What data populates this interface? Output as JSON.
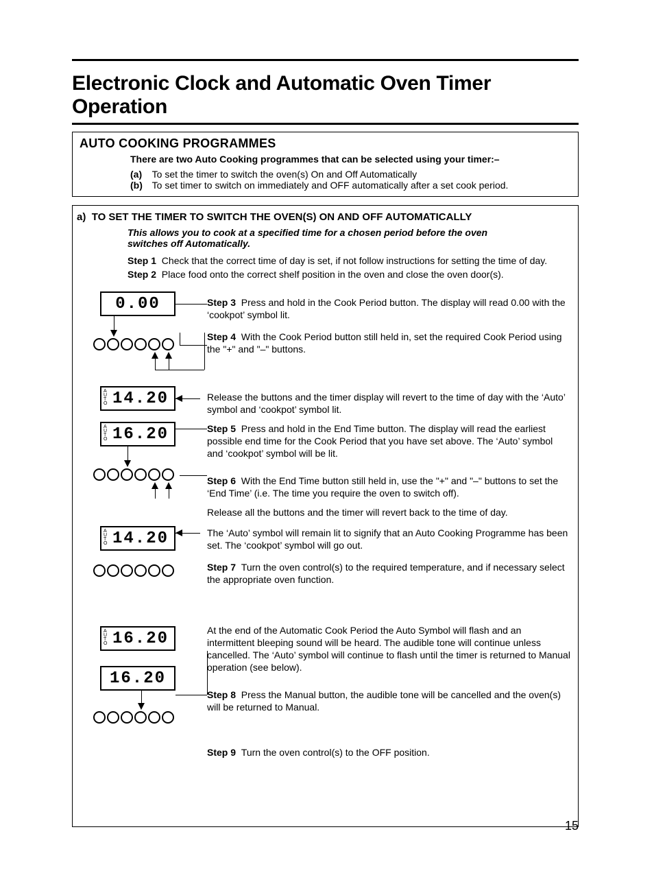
{
  "title": "Electronic Clock and Automatic Oven Timer Operation",
  "page_number": "15",
  "intro": {
    "heading": "AUTO COOKING PROGRAMMES",
    "lead": "There are two Auto Cooking programmes that can be selected using your timer:–",
    "a_label": "(a)",
    "a_text": "To set the timer to switch the oven(s) On and Off Automatically",
    "b_label": "(b)",
    "b_text": "To set timer to switch on immediately and OFF automatically after a set cook period."
  },
  "section_a": {
    "heading_prefix": "a)",
    "heading": "TO SET THE TIMER TO SWITCH THE OVEN(S) ON AND OFF AUTOMATICALLY",
    "italic_lead": "This allows you to cook at a specified time for a chosen period before the oven switches off Automatically.",
    "step1_label": "Step 1",
    "step1_text": "Check that the correct time of day is set, if not follow instructions for setting the time of day.",
    "step2_label": "Step 2",
    "step2_text": "Place food onto the correct shelf position in the oven and close the oven door(s).",
    "step3_label": "Step 3",
    "step3_text": "Press and hold in the Cook Period button. The display will read 0.00 with the ‘cookpot’ symbol lit.",
    "step4_label": "Step 4",
    "step4_text": "With the Cook Period button still held in, set the required Cook Period using the \"+\" and \"–\" buttons.",
    "release1": "Release the buttons and the timer display will revert to the time of day with the ‘Auto’ symbol and ‘cookpot’ symbol lit.",
    "step5_label": "Step 5",
    "step5_text": "Press and hold in the End Time button. The display will read the earliest possible end time for the Cook Period that you have set above. The ‘Auto’ symbol and ‘cookpot’ symbol will be lit.",
    "step6_label": "Step 6",
    "step6_text": "With the End Time button still held in, use the \"+\" and \"–\" buttons to set the ‘End Time’ (i.e. The time you require the oven to switch off).",
    "release2": "Release all the buttons and the timer will revert back to the time of day.",
    "auto_note": "The ‘Auto’ symbol will remain lit to signify that an Auto Cooking Programme has been set. The ‘cookpot’ symbol will go out.",
    "step7_label": "Step 7",
    "step7_text": "Turn the oven control(s) to the required temperature, and if necessary select the appropriate oven function.",
    "end_note": "At the end of the Automatic Cook Period the Auto Symbol will flash and an intermittent bleeping sound will be heard. The audible tone will continue unless cancelled. The ‘Auto’ symbol will continue to flash until the timer is returned to Manual operation (see below).",
    "step8_label": "Step 8",
    "step8_text": "Press the Manual button, the audible tone will be cancelled and the oven(s) will be returned to Manual.",
    "step9_label": "Step 9",
    "step9_text": "Turn the oven control(s) to the OFF position."
  },
  "displays": {
    "d1": "0.00",
    "d2": "14.20",
    "d3": "16.20",
    "d4": "14.20",
    "d5": "16.20",
    "d6": "16.20",
    "auto_label": "A\nU\nT\nO"
  }
}
